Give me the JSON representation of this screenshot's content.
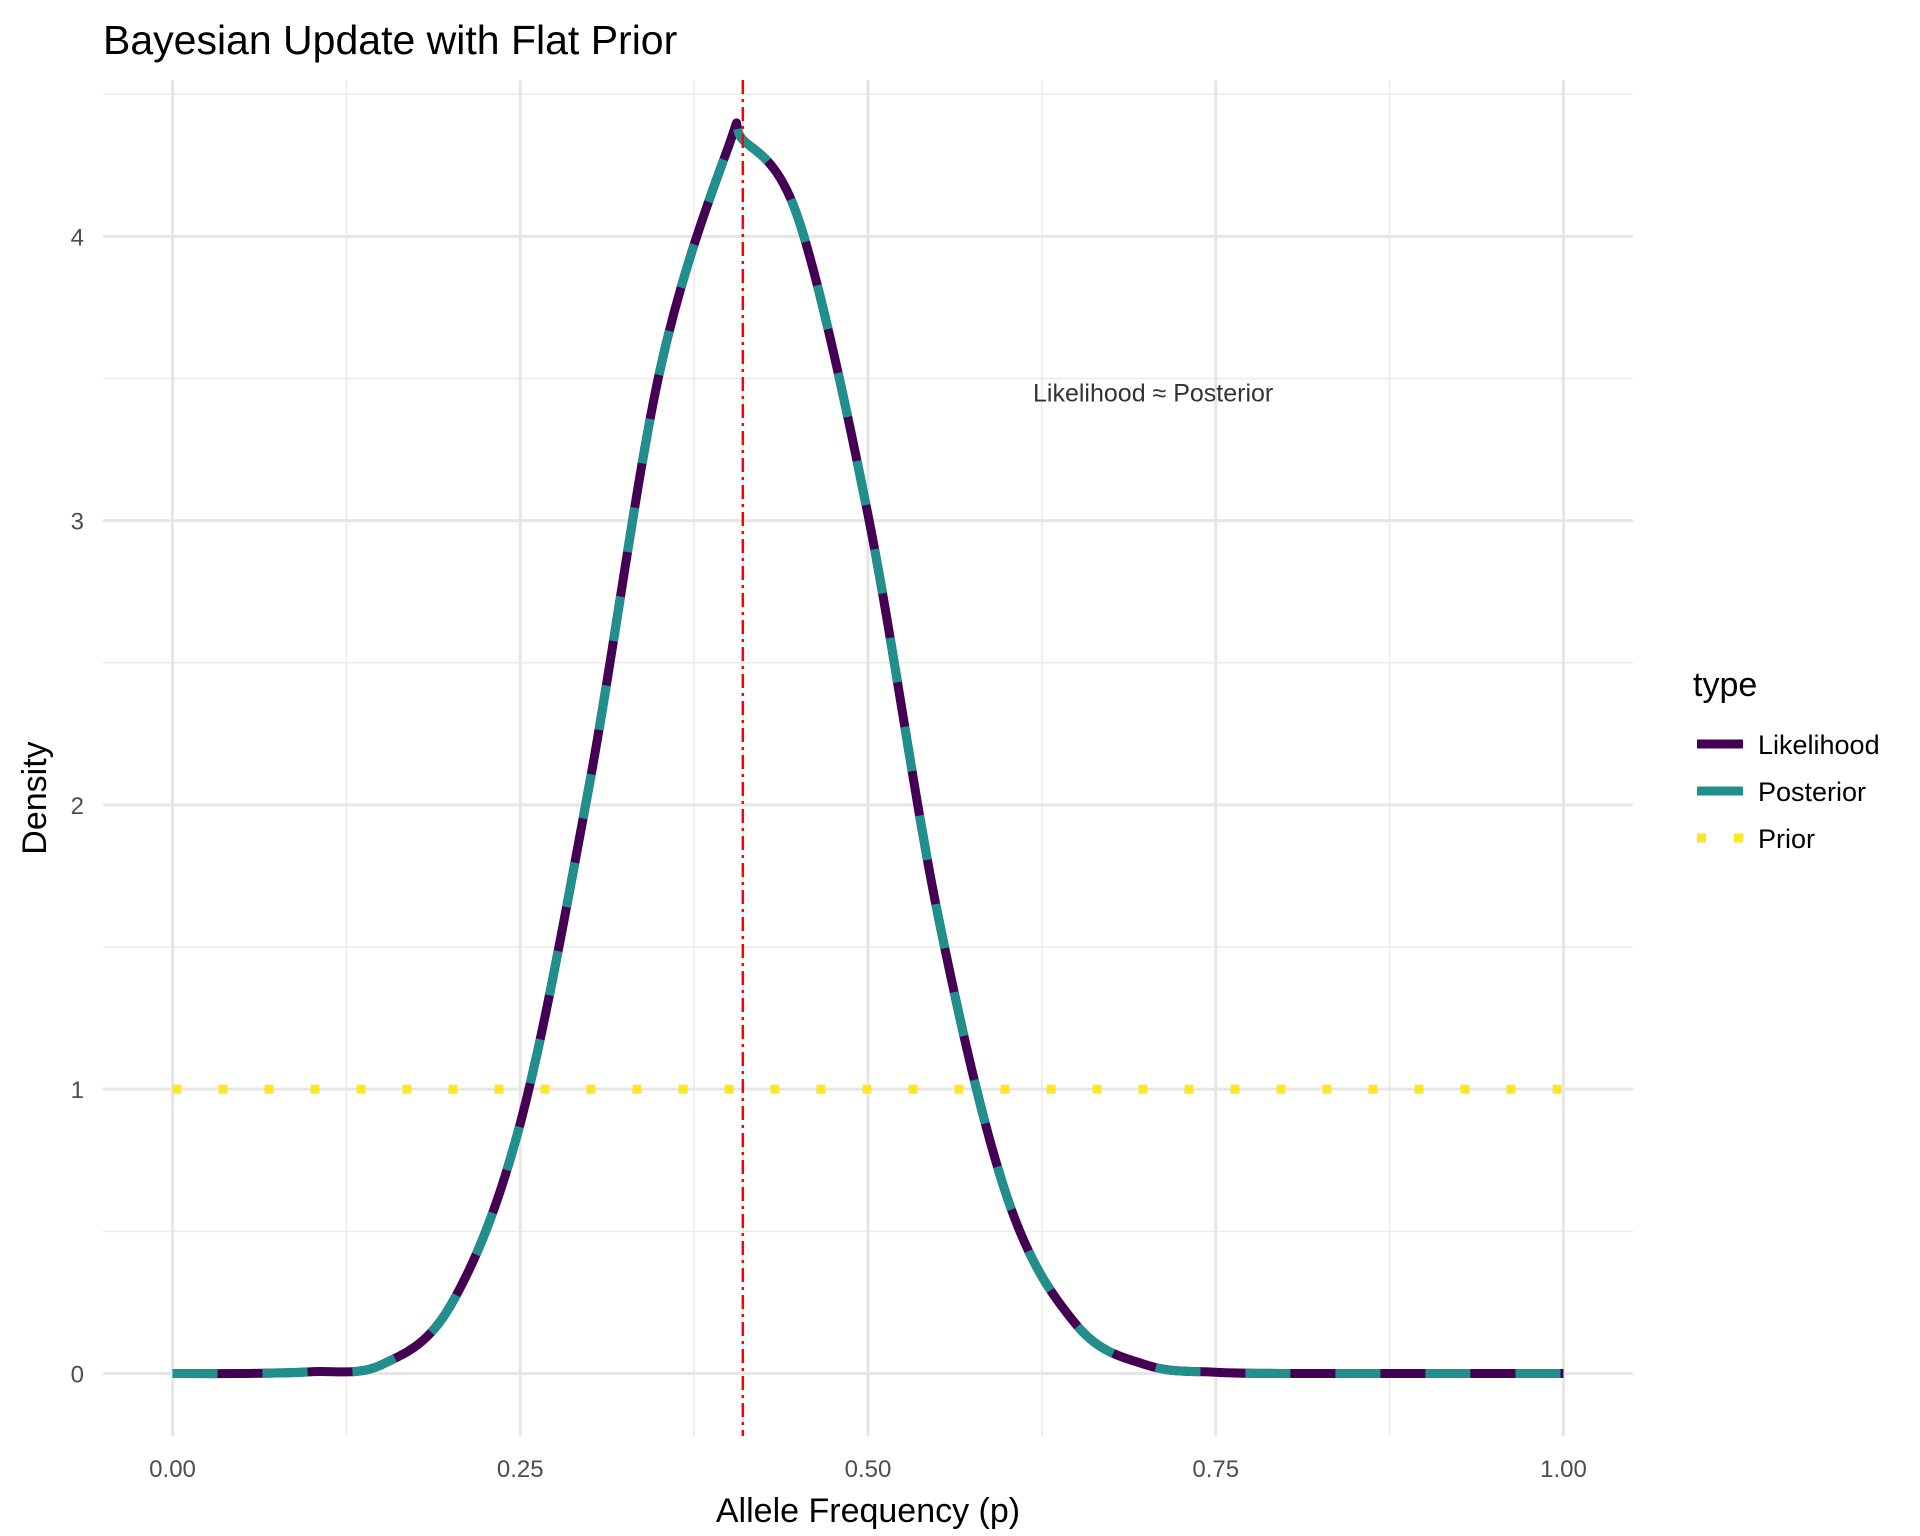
{
  "chart_data": {
    "type": "line",
    "title": "Bayesian Update with Flat Prior",
    "xlabel": "Allele Frequency (p)",
    "ylabel": "Density",
    "xlim": [
      -0.05,
      1.05
    ],
    "ylim": [
      -0.22,
      4.55
    ],
    "x_ticks": [
      0.0,
      0.25,
      0.5,
      0.75,
      1.0
    ],
    "x_tick_labels": [
      "0.00",
      "0.25",
      "0.50",
      "0.75",
      "1.00"
    ],
    "y_ticks": [
      0,
      1,
      2,
      3,
      4
    ],
    "y_tick_labels": [
      "0",
      "1",
      "2",
      "3",
      "4"
    ],
    "grid": true,
    "legend": {
      "title": "type",
      "placement": "right",
      "entries": [
        "Likelihood",
        "Posterior",
        "Prior"
      ]
    },
    "x": [
      0.0,
      0.05,
      0.1,
      0.15,
      0.2,
      0.25,
      0.3,
      0.35,
      0.4,
      0.41,
      0.45,
      0.5,
      0.55,
      0.6,
      0.65,
      0.7,
      0.75,
      0.8,
      0.85,
      0.9,
      0.95,
      1.0
    ],
    "series": [
      {
        "name": "Likelihood",
        "color": "#440154",
        "style": "solid",
        "values": [
          0.0,
          0.0,
          0.006,
          0.03,
          0.24,
          0.88,
          2.08,
          3.52,
          4.32,
          4.34,
          4.06,
          3.02,
          1.62,
          0.62,
          0.17,
          0.03,
          0.004,
          0.0,
          0.0,
          0.0,
          0.0,
          0.0
        ]
      },
      {
        "name": "Posterior",
        "color": "#21908C",
        "style": "dashed",
        "values": [
          0.0,
          0.0,
          0.006,
          0.03,
          0.24,
          0.88,
          2.08,
          3.52,
          4.32,
          4.34,
          4.06,
          3.02,
          1.62,
          0.62,
          0.17,
          0.03,
          0.004,
          0.0,
          0.0,
          0.0,
          0.0,
          0.0
        ]
      },
      {
        "name": "Prior",
        "color": "#FDE725",
        "style": "dotted",
        "values": [
          1,
          1,
          1,
          1,
          1,
          1,
          1,
          1,
          1,
          1,
          1,
          1,
          1,
          1,
          1,
          1,
          1,
          1,
          1,
          1,
          1,
          1
        ]
      }
    ],
    "vline": {
      "x": 0.41,
      "color": "#FF0000",
      "style": "dotdash"
    },
    "annotations": [
      {
        "text": "Likelihood ≈ Posterior",
        "x": 0.705,
        "y": 3.45
      }
    ]
  }
}
